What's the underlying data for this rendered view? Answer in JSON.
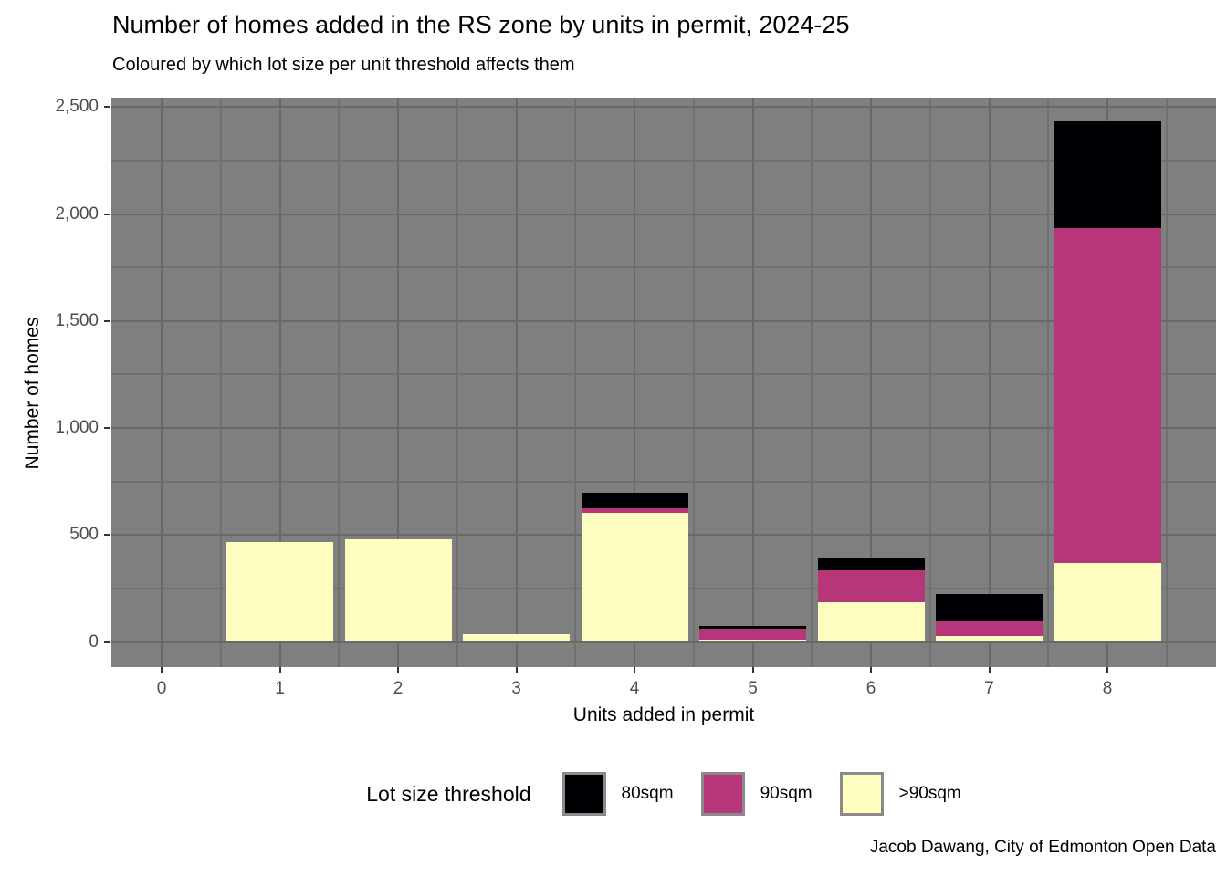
{
  "title": "Number of homes added in the RS zone by units in permit, 2024-25",
  "subtitle": "Coloured by which lot size per unit threshold affects them",
  "caption": "Jacob Dawang, City of Edmonton Open Data",
  "colors": {
    "panel_background": "#7f7f7f",
    "gridline_major": "#696969",
    "gridline_minor": "#707070",
    "tick_label": "#4d4d4d",
    "text": "#000000",
    "threshold_80sqm": "#000004",
    "threshold_90sqm": "#b63679",
    "threshold_gt90sqm": "#fcfdbf"
  },
  "chart_data": {
    "type": "bar",
    "stacked": true,
    "title": "Number of homes added in the RS zone by units in permit, 2024-25",
    "subtitle": "Coloured by which lot size per unit threshold affects them",
    "xlabel": "Units added in permit",
    "ylabel": "Number of homes",
    "categories": [
      "0",
      "1",
      "2",
      "3",
      "4",
      "5",
      "6",
      "7",
      "8"
    ],
    "series": [
      {
        "name": "80sqm",
        "color": "#000004",
        "values": [
          0,
          0,
          0,
          0,
          72,
          15,
          60,
          126,
          496
        ]
      },
      {
        "name": "90sqm",
        "color": "#b63679",
        "values": [
          0,
          0,
          0,
          0,
          20,
          50,
          150,
          70,
          1568
        ]
      },
      {
        "name": ">90sqm",
        "color": "#fcfdbf",
        "values": [
          0,
          467,
          478,
          36,
          604,
          10,
          186,
          28,
          368
        ]
      }
    ],
    "stack_order_bottom_to_top": [
      ">90sqm",
      "90sqm",
      "80sqm"
    ],
    "totals": [
      0,
      467,
      478,
      36,
      696,
      75,
      396,
      224,
      2432
    ],
    "ylim": [
      0,
      2500
    ],
    "yticks": [
      0,
      500,
      1000,
      1500,
      2000,
      2500
    ],
    "ytick_labels": [
      "0",
      "500",
      "1,000",
      "1,500",
      "2,000",
      "2,500"
    ],
    "grid": "major-and-minor",
    "legend_title": "Lot size threshold",
    "legend_position": "bottom",
    "legend_entries": [
      "80sqm",
      "90sqm",
      ">90sqm"
    ]
  }
}
